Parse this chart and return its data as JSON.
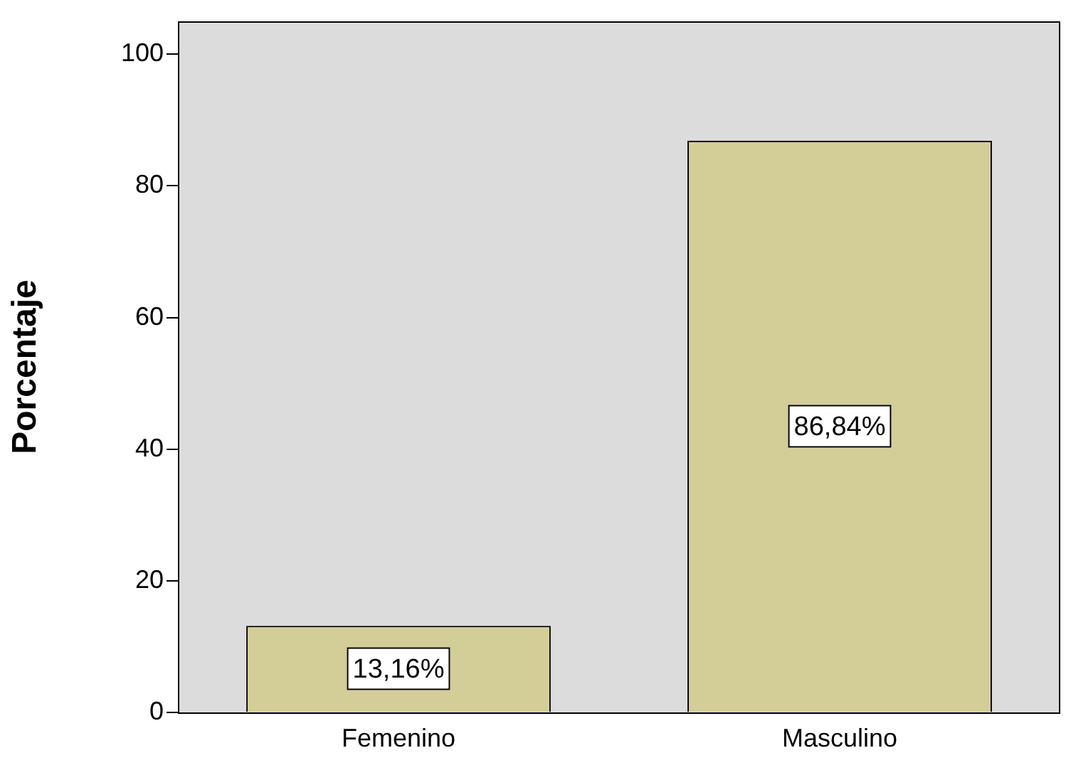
{
  "chart_data": {
    "type": "bar",
    "ylabel": "Porcentaje",
    "categories": [
      "Femenino",
      "Masculino"
    ],
    "values": [
      13.16,
      86.84
    ],
    "color": "#d3cd98",
    "value_labels": [
      "13,16%",
      "86,84%"
    ],
    "ylim": [
      0,
      105
    ],
    "yticks": [
      0,
      20,
      40,
      60,
      80,
      100
    ],
    "grid": false,
    "legend": false
  }
}
